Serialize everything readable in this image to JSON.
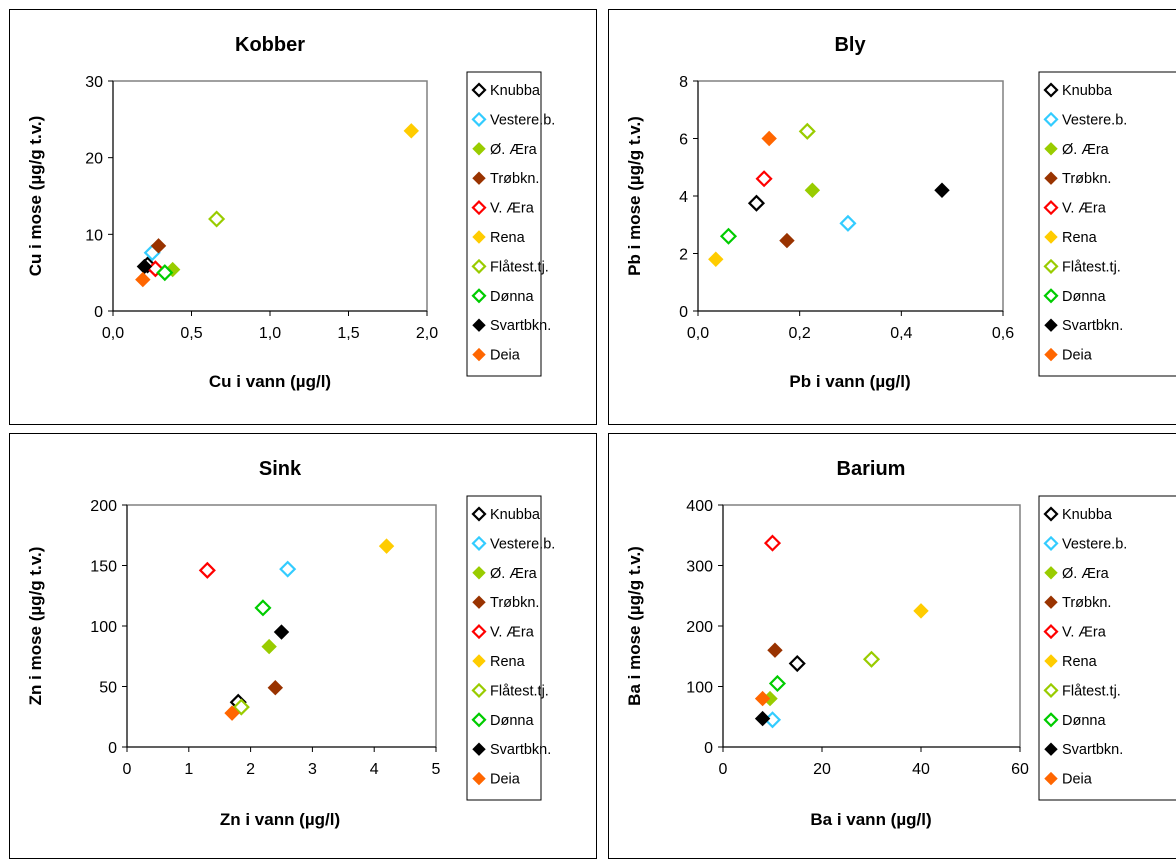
{
  "legend_colors": {
    "Knubba": "#000000",
    "Vestere.b.": "#33ccff",
    "Ø. Æra": "#99cc00",
    "Trøbkn.": "#993300",
    "V. Æra": "#ff0000",
    "Rena": "#ffcc00",
    "Flåtest.tj.": "#99cc00",
    "Dønna": "#00cc00",
    "Svartbkn.": "#000000",
    "Deia": "#ff6600"
  },
  "chart_data": [
    {
      "type": "scatter",
      "title": "Kobber",
      "xlabel": "Cu i vann (µg/l)",
      "ylabel": "Cu i mose (µg/g t.v.)",
      "xlim": [
        0,
        2
      ],
      "ylim": [
        0,
        30
      ],
      "x_ticks": [
        "0,0",
        "0,5",
        "1,0",
        "1,5",
        "2,0"
      ],
      "y_ticks": [
        "0",
        "10",
        "20",
        "30"
      ],
      "legend": "right",
      "series": [
        {
          "name": "Knubba",
          "marker": "open",
          "x": 0.22,
          "y": 6.0
        },
        {
          "name": "Vestere.b.",
          "marker": "open",
          "x": 0.25,
          "y": 7.6
        },
        {
          "name": "Ø. Æra",
          "marker": "filled",
          "x": 0.38,
          "y": 5.4
        },
        {
          "name": "Trøbkn.",
          "marker": "filled",
          "x": 0.29,
          "y": 8.5
        },
        {
          "name": "V. Æra",
          "marker": "open",
          "x": 0.27,
          "y": 5.5
        },
        {
          "name": "Rena",
          "marker": "filled",
          "x": 1.9,
          "y": 23.5
        },
        {
          "name": "Flåtest.tj.",
          "marker": "open",
          "x": 0.66,
          "y": 12.0
        },
        {
          "name": "Dønna",
          "marker": "open",
          "x": 0.33,
          "y": 5.0
        },
        {
          "name": "Svartbkn.",
          "marker": "filled",
          "x": 0.2,
          "y": 5.8
        },
        {
          "name": "Deia",
          "marker": "filled",
          "x": 0.19,
          "y": 4.1
        }
      ]
    },
    {
      "type": "scatter",
      "title": "Bly",
      "xlabel": "Pb i vann (µg/l)",
      "ylabel": "Pb i mose (µg/g t.v.)",
      "xlim": [
        0,
        0.6
      ],
      "ylim": [
        0,
        8
      ],
      "x_ticks": [
        "0,0",
        "0,2",
        "0,4",
        "0,6"
      ],
      "y_ticks": [
        "0",
        "2",
        "4",
        "6",
        "8"
      ],
      "legend": "right",
      "series": [
        {
          "name": "Knubba",
          "marker": "open",
          "x": 0.115,
          "y": 3.75
        },
        {
          "name": "Vestere.b.",
          "marker": "open",
          "x": 0.295,
          "y": 3.05
        },
        {
          "name": "Ø. Æra",
          "marker": "filled",
          "x": 0.225,
          "y": 4.2
        },
        {
          "name": "Trøbkn.",
          "marker": "filled",
          "x": 0.175,
          "y": 2.45
        },
        {
          "name": "V. Æra",
          "marker": "open",
          "x": 0.13,
          "y": 4.6
        },
        {
          "name": "Rena",
          "marker": "filled",
          "x": 0.035,
          "y": 1.8
        },
        {
          "name": "Flåtest.tj.",
          "marker": "open",
          "x": 0.215,
          "y": 6.25
        },
        {
          "name": "Dønna",
          "marker": "open",
          "x": 0.06,
          "y": 2.6
        },
        {
          "name": "Svartbkn.",
          "marker": "filled",
          "x": 0.48,
          "y": 4.2
        },
        {
          "name": "Deia",
          "marker": "filled",
          "x": 0.14,
          "y": 6.0
        }
      ]
    },
    {
      "type": "scatter",
      "title": "Sink",
      "xlabel": "Zn i vann (µg/l)",
      "ylabel": "Zn i mose (µg/g t.v.)",
      "xlim": [
        0,
        5
      ],
      "ylim": [
        0,
        200
      ],
      "x_ticks": [
        "0",
        "1",
        "2",
        "3",
        "4",
        "5"
      ],
      "y_ticks": [
        "0",
        "50",
        "100",
        "150",
        "200"
      ],
      "legend": "right",
      "series": [
        {
          "name": "Knubba",
          "marker": "open",
          "x": 1.8,
          "y": 37
        },
        {
          "name": "Vestere.b.",
          "marker": "open",
          "x": 2.6,
          "y": 147
        },
        {
          "name": "Ø. Æra",
          "marker": "filled",
          "x": 2.3,
          "y": 83
        },
        {
          "name": "Trøbkn.",
          "marker": "filled",
          "x": 2.4,
          "y": 49
        },
        {
          "name": "V. Æra",
          "marker": "open",
          "x": 1.3,
          "y": 146
        },
        {
          "name": "Rena",
          "marker": "filled",
          "x": 4.2,
          "y": 166
        },
        {
          "name": "Flåtest.tj.",
          "marker": "open",
          "x": 1.85,
          "y": 33
        },
        {
          "name": "Dønna",
          "marker": "open",
          "x": 2.2,
          "y": 115
        },
        {
          "name": "Svartbkn.",
          "marker": "filled",
          "x": 2.5,
          "y": 95
        },
        {
          "name": "Deia",
          "marker": "filled",
          "x": 1.7,
          "y": 28
        }
      ]
    },
    {
      "type": "scatter",
      "title": "Barium",
      "xlabel": "Ba i vann (µg/l)",
      "ylabel": "Ba i mose (µg/g t.v.)",
      "xlim": [
        0,
        60
      ],
      "ylim": [
        0,
        400
      ],
      "x_ticks": [
        "0",
        "20",
        "40",
        "60"
      ],
      "y_ticks": [
        "0",
        "100",
        "200",
        "300",
        "400"
      ],
      "legend": "right",
      "series": [
        {
          "name": "Knubba",
          "marker": "open",
          "x": 15,
          "y": 138
        },
        {
          "name": "Vestere.b.",
          "marker": "open",
          "x": 10,
          "y": 45
        },
        {
          "name": "Ø. Æra",
          "marker": "filled",
          "x": 9.5,
          "y": 80
        },
        {
          "name": "Trøbkn.",
          "marker": "filled",
          "x": 10.5,
          "y": 160
        },
        {
          "name": "V. Æra",
          "marker": "open",
          "x": 10,
          "y": 337
        },
        {
          "name": "Rena",
          "marker": "filled",
          "x": 40,
          "y": 225
        },
        {
          "name": "Flåtest.tj.",
          "marker": "open",
          "x": 30,
          "y": 145
        },
        {
          "name": "Dønna",
          "marker": "open",
          "x": 11,
          "y": 105
        },
        {
          "name": "Svartbkn.",
          "marker": "filled",
          "x": 8,
          "y": 47
        },
        {
          "name": "Deia",
          "marker": "filled",
          "x": 8,
          "y": 80
        }
      ]
    }
  ]
}
